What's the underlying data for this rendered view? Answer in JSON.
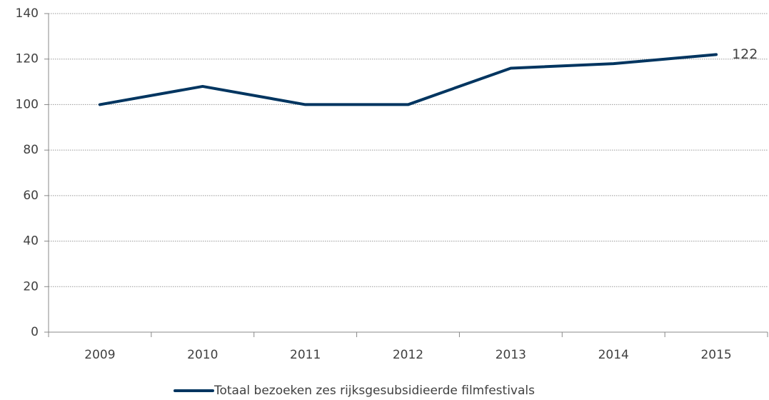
{
  "chart_data": {
    "type": "line",
    "categories": [
      "2009",
      "2010",
      "2011",
      "2012",
      "2013",
      "2014",
      "2015"
    ],
    "series": [
      {
        "name": "Totaal bezoeken zes rijksgesubsidieerde filmfestivals",
        "color": "#003560",
        "values": [
          100,
          108,
          100,
          100,
          116,
          118,
          122
        ],
        "value_labels": [
          null,
          null,
          null,
          null,
          null,
          null,
          "122"
        ]
      }
    ],
    "ylim": [
      0,
      140
    ],
    "yticks": [
      0,
      20,
      40,
      60,
      80,
      100,
      120,
      140
    ],
    "grid": true,
    "legend": "bottom"
  }
}
